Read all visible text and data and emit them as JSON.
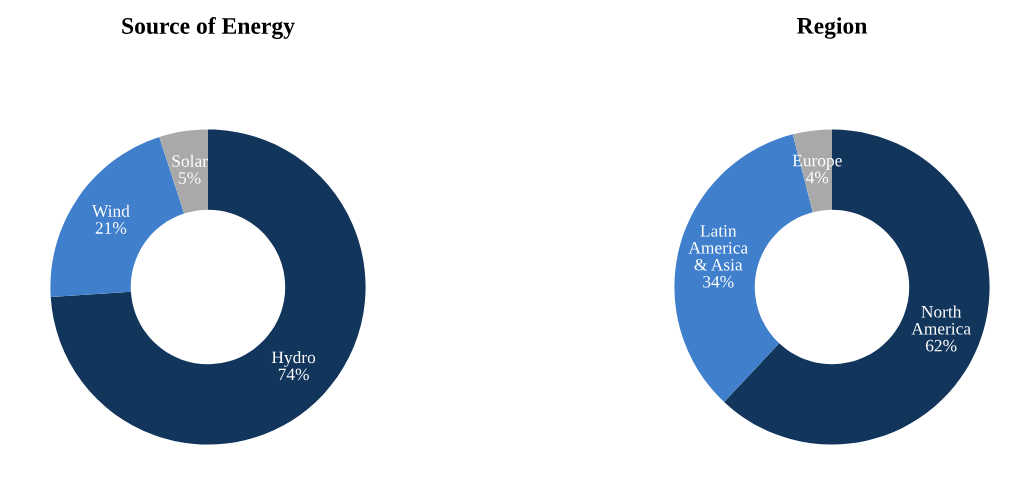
{
  "chart_data": [
    {
      "type": "donut",
      "title": "Source of Energy",
      "categories": [
        "Hydro",
        "Wind",
        "Solar"
      ],
      "values": [
        74,
        21,
        5
      ],
      "colors": [
        "#12355b",
        "#3f7fcc",
        "#a9a9a9"
      ],
      "value_labels": [
        "74%",
        "21%",
        "5%"
      ]
    },
    {
      "type": "donut",
      "title": "Region",
      "categories": [
        "North\nAmerica",
        "Latin\nAmerica\n& Asia",
        "Europe"
      ],
      "values": [
        62,
        34,
        4
      ],
      "colors": [
        "#12355b",
        "#3f7fcc",
        "#a9a9a9"
      ],
      "value_labels": [
        "62%",
        "34%",
        "4%"
      ]
    }
  ]
}
